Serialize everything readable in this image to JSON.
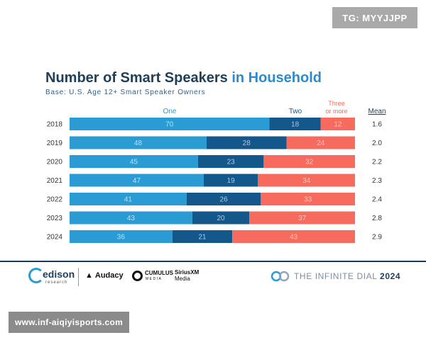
{
  "watermark": {
    "top_right": "TG: MYYJJPP",
    "bottom_left": "www.inf-aiqiyisports.com"
  },
  "chart_data": {
    "type": "bar",
    "orientation": "horizontal",
    "stacked": true,
    "title": "Number of Smart Speakers",
    "title_accent": "in Household",
    "subtitle": "Base: U.S. Age 12+ Smart Speaker Owners",
    "categories": [
      "2018",
      "2019",
      "2020",
      "2021",
      "2022",
      "2023",
      "2024"
    ],
    "series": [
      {
        "name": "One",
        "color": "#2a9bd3",
        "label_color": "#b9e0f5",
        "values": [
          70,
          48,
          45,
          47,
          41,
          43,
          36
        ]
      },
      {
        "name": "Two",
        "color": "#14578b",
        "label_color": "#a9c9e6",
        "values": [
          18,
          28,
          23,
          19,
          26,
          20,
          21
        ]
      },
      {
        "name_lines": [
          "Three",
          "or more"
        ],
        "color": "#f76b5e",
        "label_color": "#fbc4bd",
        "values": [
          12,
          24,
          32,
          34,
          33,
          37,
          43
        ]
      }
    ],
    "mean_label": "Mean",
    "mean": [
      "1.6",
      "2.0",
      "2.2",
      "2.3",
      "2.4",
      "2.8",
      "2.9"
    ],
    "xlim": [
      0,
      100
    ],
    "grid": false,
    "legend": "top"
  },
  "footer": {
    "edison_name": "edison",
    "edison_sub": "research",
    "audacy": "Audacy",
    "cumulus_name": "CUMULUS",
    "cumulus_sub": "MEDIA",
    "sirius_top": "SiriusXM",
    "sirius_bottom": "Media",
    "infinite_text": "THE INFINITE DIAL",
    "infinite_year": "2024"
  }
}
